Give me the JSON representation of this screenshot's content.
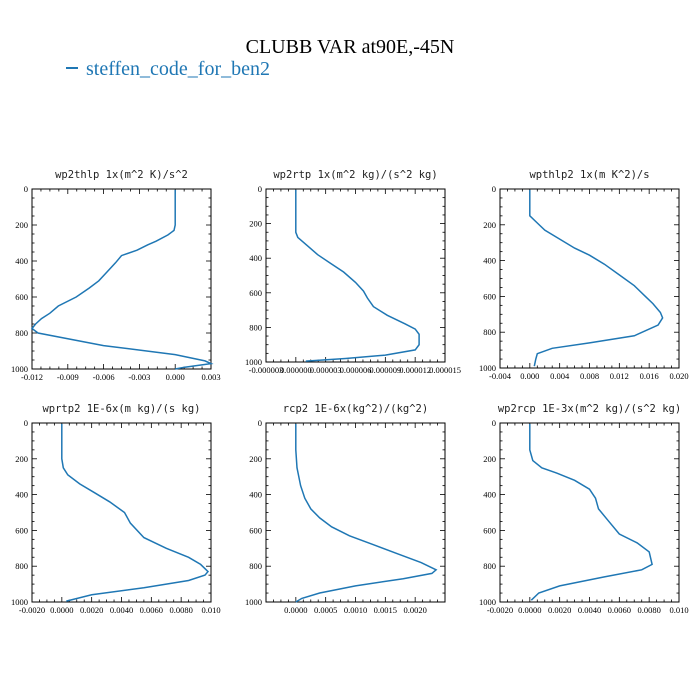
{
  "figure": {
    "title": "CLUBB VAR at90E,-45N",
    "legend": {
      "label": "steffen_code_for_ben2",
      "color": "#1f77b4"
    }
  },
  "chart_data": [
    {
      "type": "line",
      "title": "wp2thlp  1x(m^2 K)/s^2",
      "xlim": [
        -0.012,
        0.003
      ],
      "xticks": [
        -0.012,
        -0.009,
        -0.006,
        -0.003,
        0.0,
        0.003
      ],
      "xtick_labels": [
        "-0.012",
        "-0.009",
        "-0.006",
        "-0.003",
        "0.000",
        "0.003"
      ],
      "ylim": [
        1000,
        0
      ],
      "yticks": [
        0,
        200,
        400,
        600,
        800,
        1000
      ],
      "series": [
        {
          "color": "#1f77b4",
          "x": [
            0.0,
            0.0,
            0.0,
            -0.0001,
            -0.0003,
            -0.0006,
            -0.0016,
            -0.0023,
            -0.0032,
            -0.0045,
            -0.005,
            -0.0057,
            -0.0064,
            -0.0072,
            -0.0083,
            -0.0098,
            -0.0105,
            -0.0112,
            -0.0117,
            -0.012,
            -0.0115,
            -0.006,
            0.0,
            0.0025,
            0.003,
            0.0008,
            0.0
          ],
          "y": [
            5,
            150,
            200,
            230,
            240,
            255,
            290,
            310,
            340,
            370,
            410,
            460,
            510,
            550,
            600,
            650,
            690,
            720,
            750,
            775,
            800,
            870,
            920,
            955,
            970,
            990,
            1000
          ]
        }
      ]
    },
    {
      "type": "line",
      "title": "wp2rtp  1x(m^2 kg)/(s^2 kg)",
      "xlim": [
        -3e-06,
        1.5e-05
      ],
      "xticks": [
        -3e-06,
        0.0,
        3e-06,
        6e-06,
        9e-06,
        1.2e-05,
        1.5e-05
      ],
      "xtick_labels": [
        "-0.000003",
        "0.000000",
        "0.000003",
        "0.000006",
        "0.000009",
        "0.000012",
        "0.000015"
      ],
      "ylim": [
        1000,
        0
      ],
      "yticks": [
        0,
        200,
        400,
        600,
        800,
        1000
      ],
      "series": [
        {
          "color": "#1f77b4",
          "x": [
            0.0,
            0.0,
            0.0,
            2e-07,
            1.2e-06,
            2.2e-06,
            3.5e-06,
            4.8e-06,
            6e-06,
            6.8e-06,
            7.2e-06,
            7.8e-06,
            9.2e-06,
            1.1e-05,
            1.2e-05,
            1.24e-05,
            1.24e-05,
            1.2e-05,
            9e-06,
            5e-06,
            1e-06
          ],
          "y": [
            5,
            150,
            250,
            280,
            330,
            380,
            430,
            480,
            540,
            590,
            630,
            680,
            730,
            780,
            810,
            840,
            900,
            930,
            960,
            980,
            995
          ]
        }
      ]
    },
    {
      "type": "line",
      "title": "wpthlp2  1x(m K^2)/s",
      "xlim": [
        -0.004,
        0.02
      ],
      "xticks": [
        -0.004,
        0.0,
        0.004,
        0.008,
        0.012,
        0.016,
        0.02
      ],
      "xtick_labels": [
        "-0.004",
        "0.000",
        "0.004",
        "0.008",
        "0.012",
        "0.016",
        "0.020"
      ],
      "ylim": [
        1000,
        0
      ],
      "yticks": [
        0,
        200,
        400,
        600,
        800,
        1000
      ],
      "series": [
        {
          "color": "#1f77b4",
          "x": [
            0.0,
            0.0,
            0.001,
            0.002,
            0.004,
            0.006,
            0.008,
            0.01,
            0.012,
            0.014,
            0.0155,
            0.0165,
            0.0175,
            0.0178,
            0.0172,
            0.014,
            0.008,
            0.003,
            0.001,
            0.0008,
            0.0006
          ],
          "y": [
            5,
            150,
            190,
            230,
            280,
            330,
            370,
            420,
            480,
            540,
            600,
            640,
            690,
            720,
            760,
            820,
            860,
            890,
            920,
            950,
            990
          ]
        }
      ]
    },
    {
      "type": "line",
      "title": "wprtp2  1E-6x(m kg)/(s kg)",
      "xlim": [
        -0.002,
        0.01
      ],
      "xticks": [
        -0.002,
        0.0,
        0.002,
        0.004,
        0.006,
        0.008,
        0.01
      ],
      "xtick_labels": [
        "-0.0020",
        "0.0000",
        "0.0020",
        "0.0040",
        "0.0060",
        "0.0080",
        "0.010"
      ],
      "ylim": [
        1000,
        0
      ],
      "yticks": [
        0,
        200,
        400,
        600,
        800,
        1000
      ],
      "series": [
        {
          "color": "#1f77b4",
          "x": [
            0.0,
            0.0,
            0.0001,
            0.0004,
            0.0012,
            0.0022,
            0.0032,
            0.0042,
            0.0046,
            0.0055,
            0.007,
            0.0085,
            0.0093,
            0.0098,
            0.0096,
            0.0085,
            0.0055,
            0.002,
            0.0003
          ],
          "y": [
            5,
            200,
            250,
            290,
            340,
            390,
            440,
            500,
            560,
            640,
            700,
            750,
            790,
            830,
            850,
            880,
            920,
            960,
            995
          ]
        }
      ]
    },
    {
      "type": "line",
      "title": "rcp2  1E-6x(kg^2)/(kg^2)",
      "xlim": [
        -0.0005,
        0.0025
      ],
      "xticks": [
        0.0,
        0.0005,
        0.001,
        0.0015,
        0.002
      ],
      "xtick_labels": [
        "0.0000",
        "0.0005",
        "0.0010",
        "0.0015",
        "0.0020"
      ],
      "ylim": [
        1000,
        0
      ],
      "yticks": [
        0,
        200,
        400,
        600,
        800,
        1000
      ],
      "series": [
        {
          "color": "#1f77b4",
          "x": [
            0.0,
            0.0,
            2e-05,
            8e-05,
            0.00015,
            0.00025,
            0.0004,
            0.0006,
            0.0009,
            0.0013,
            0.0017,
            0.0021,
            0.00235,
            0.00228,
            0.0018,
            0.001,
            0.0004,
            0.0001,
            0.0
          ],
          "y": [
            5,
            150,
            250,
            350,
            420,
            480,
            530,
            580,
            630,
            680,
            730,
            780,
            820,
            840,
            870,
            910,
            950,
            980,
            1000
          ]
        }
      ]
    },
    {
      "type": "line",
      "title": "wp2rcp  1E-3x(m^2 kg)/(s^2 kg)",
      "xlim": [
        -0.002,
        0.01
      ],
      "xticks": [
        -0.002,
        0.0,
        0.002,
        0.004,
        0.006,
        0.008,
        0.01
      ],
      "xtick_labels": [
        "-0.0020",
        "0.0000",
        "0.0020",
        "0.0040",
        "0.0060",
        "0.0080",
        "0.010"
      ],
      "ylim": [
        1000,
        0
      ],
      "yticks": [
        0,
        200,
        400,
        600,
        800,
        1000
      ],
      "series": [
        {
          "color": "#1f77b4",
          "x": [
            0.0,
            0.0,
            0.0002,
            0.0008,
            0.0018,
            0.003,
            0.004,
            0.0044,
            0.0046,
            0.0052,
            0.006,
            0.0072,
            0.008,
            0.0082,
            0.0075,
            0.005,
            0.002,
            0.0006,
            0.0001
          ],
          "y": [
            5,
            150,
            210,
            250,
            280,
            320,
            370,
            420,
            480,
            540,
            620,
            670,
            720,
            790,
            820,
            860,
            910,
            950,
            990
          ]
        }
      ]
    }
  ]
}
